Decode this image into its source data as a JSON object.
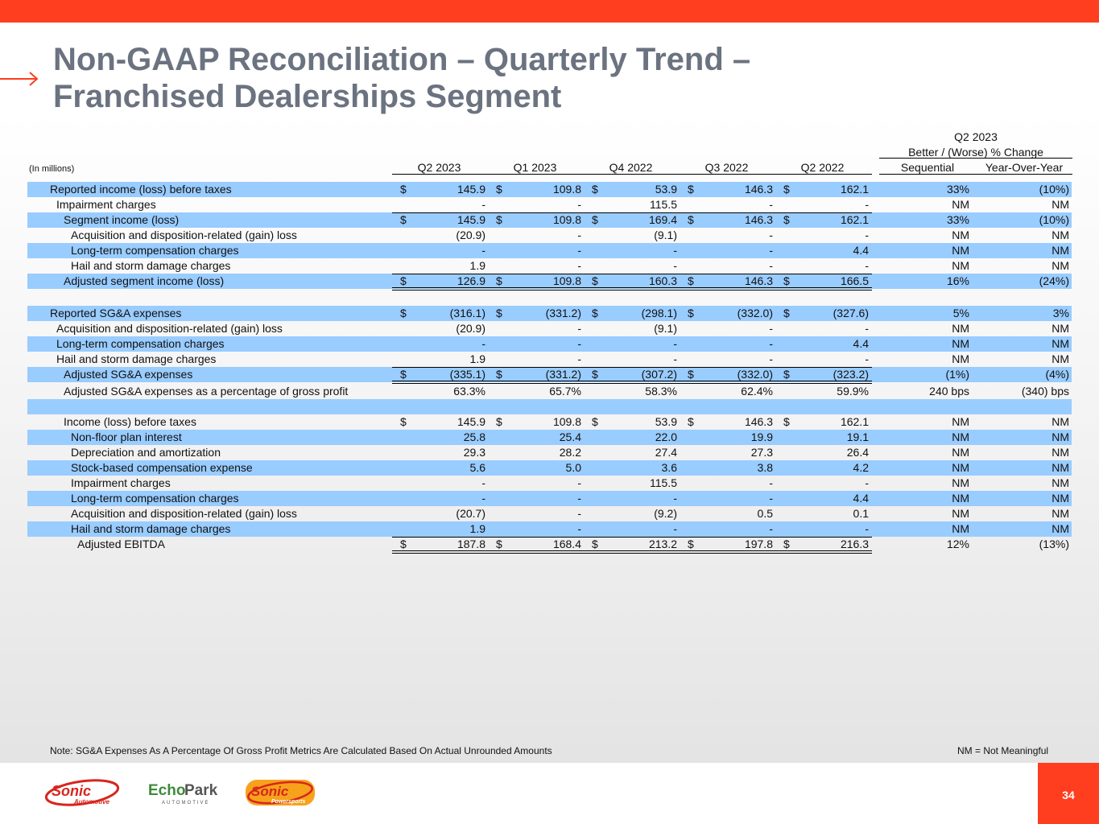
{
  "slide": {
    "title_line1": "Non-GAAP Reconciliation – Quarterly Trend –",
    "title_line2": "Franchised Dealerships Segment",
    "units": "(In millions)",
    "change_header": {
      "line1": "Q2 2023",
      "line2": "Better / (Worse) % Change"
    },
    "columns": [
      "Q2 2023",
      "Q1 2023",
      "Q4 2022",
      "Q3 2022",
      "Q2 2022"
    ],
    "change_columns": [
      "Sequential",
      "Year-Over-Year"
    ],
    "note": "Note: SG&A Expenses As A Percentage Of Gross Profit Metrics Are Calculated Based On Actual Unrounded Amounts",
    "legend_nm": "NM = Not Meaningful",
    "page_number": "34"
  },
  "brand_colors": {
    "accent": "#ff3d1f",
    "row_shade": "#99ccff",
    "title_gray": "#6b7280"
  },
  "logos": {
    "sonic_automotive": {
      "word": "Sonic",
      "sub": "Automotive"
    },
    "echopark": {
      "word1": "Echo",
      "word2": "Park",
      "sub": "AUTOMOTIVE"
    },
    "sonic_powersports": {
      "word": "Sonic",
      "sub": "Powersports"
    }
  },
  "rows": [
    {
      "label": "Reported income (loss) before taxes",
      "indent": 0,
      "dollar": true,
      "values": [
        "145.9",
        "109.8",
        "53.9",
        "146.3",
        "162.1"
      ],
      "seq": "33%",
      "yoy": "(10%)"
    },
    {
      "label": "Impairment charges",
      "indent": 1,
      "dollar": false,
      "values": [
        "-",
        "-",
        "115.5",
        "-",
        "-"
      ],
      "seq": "NM",
      "yoy": "NM"
    },
    {
      "label": "Segment income (loss)",
      "indent": 2,
      "dollar": true,
      "values": [
        "145.9",
        "109.8",
        "169.4",
        "146.3",
        "162.1"
      ],
      "seq": "33%",
      "yoy": "(10%)"
    },
    {
      "label": "Acquisition and disposition-related (gain) loss",
      "indent": 3,
      "dollar": false,
      "values": [
        "(20.9)",
        "-",
        "(9.1)",
        "-",
        "-"
      ],
      "seq": "NM",
      "yoy": "NM"
    },
    {
      "label": "Long-term compensation charges",
      "indent": 3,
      "dollar": false,
      "values": [
        "-",
        "-",
        "-",
        "-",
        "4.4"
      ],
      "seq": "NM",
      "yoy": "NM"
    },
    {
      "label": "Hail and storm damage charges",
      "indent": 3,
      "dollar": false,
      "values": [
        "1.9",
        "-",
        "-",
        "-",
        "-"
      ],
      "seq": "NM",
      "yoy": "NM"
    },
    {
      "label": "Adjusted segment income (loss)",
      "indent": 2,
      "dollar": true,
      "values": [
        "126.9",
        "109.8",
        "160.3",
        "146.3",
        "166.5"
      ],
      "seq": "16%",
      "yoy": "(24%)"
    },
    {
      "label": "",
      "indent": 0,
      "dollar": false,
      "values": [
        "",
        "",
        "",
        "",
        ""
      ],
      "seq": "",
      "yoy": ""
    },
    {
      "label": "Reported SG&A expenses",
      "indent": 0,
      "dollar": true,
      "values": [
        "(316.1)",
        "(331.2)",
        "(298.1)",
        "(332.0)",
        "(327.6)"
      ],
      "seq": "5%",
      "yoy": "3%"
    },
    {
      "label": "Acquisition and disposition-related (gain) loss",
      "indent": 1,
      "dollar": false,
      "values": [
        "(20.9)",
        "-",
        "(9.1)",
        "-",
        "-"
      ],
      "seq": "NM",
      "yoy": "NM"
    },
    {
      "label": "Long-term compensation charges",
      "indent": 1,
      "dollar": false,
      "values": [
        "-",
        "-",
        "-",
        "-",
        "4.4"
      ],
      "seq": "NM",
      "yoy": "NM"
    },
    {
      "label": "Hail and storm damage charges",
      "indent": 1,
      "dollar": false,
      "values": [
        "1.9",
        "-",
        "-",
        "-",
        "-"
      ],
      "seq": "NM",
      "yoy": "NM"
    },
    {
      "label": "Adjusted SG&A expenses",
      "indent": 2,
      "dollar": true,
      "values": [
        "(335.1)",
        "(331.2)",
        "(307.2)",
        "(332.0)",
        "(323.2)"
      ],
      "seq": "(1%)",
      "yoy": "(4%)"
    },
    {
      "label": "Adjusted SG&A expenses as a percentage of gross profit",
      "indent": 2,
      "dollar": false,
      "values": [
        "63.3%",
        "65.7%",
        "58.3%",
        "62.4%",
        "59.9%"
      ],
      "seq": "240 bps",
      "yoy": "(340) bps"
    },
    {
      "label": "",
      "indent": 0,
      "dollar": false,
      "values": [
        "",
        "",
        "",
        "",
        ""
      ],
      "seq": "",
      "yoy": ""
    },
    {
      "label": "Income (loss) before taxes",
      "indent": 2,
      "dollar": true,
      "values": [
        "145.9",
        "109.8",
        "53.9",
        "146.3",
        "162.1"
      ],
      "seq": "NM",
      "yoy": "NM"
    },
    {
      "label": "Non-floor plan interest",
      "indent": 3,
      "dollar": false,
      "values": [
        "25.8",
        "25.4",
        "22.0",
        "19.9",
        "19.1"
      ],
      "seq": "NM",
      "yoy": "NM"
    },
    {
      "label": "Depreciation and amortization",
      "indent": 3,
      "dollar": false,
      "values": [
        "29.3",
        "28.2",
        "27.4",
        "27.3",
        "26.4"
      ],
      "seq": "NM",
      "yoy": "NM"
    },
    {
      "label": "Stock-based compensation expense",
      "indent": 3,
      "dollar": false,
      "values": [
        "5.6",
        "5.0",
        "3.6",
        "3.8",
        "4.2"
      ],
      "seq": "NM",
      "yoy": "NM"
    },
    {
      "label": "Impairment charges",
      "indent": 3,
      "dollar": false,
      "values": [
        "-",
        "-",
        "115.5",
        "-",
        "-"
      ],
      "seq": "NM",
      "yoy": "NM"
    },
    {
      "label": "Long-term compensation charges",
      "indent": 3,
      "dollar": false,
      "values": [
        "-",
        "-",
        "-",
        "-",
        "4.4"
      ],
      "seq": "NM",
      "yoy": "NM"
    },
    {
      "label": "Acquisition and disposition-related (gain) loss",
      "indent": 3,
      "dollar": false,
      "values": [
        "(20.7)",
        "-",
        "(9.2)",
        "0.5",
        "0.1"
      ],
      "seq": "NM",
      "yoy": "NM"
    },
    {
      "label": "Hail and storm damage charges",
      "indent": 3,
      "dollar": false,
      "values": [
        "1.9",
        "-",
        "-",
        "-",
        "-"
      ],
      "seq": "NM",
      "yoy": "NM"
    },
    {
      "label": "Adjusted EBITDA",
      "indent": 4,
      "dollar": true,
      "values": [
        "187.8",
        "168.4",
        "213.2",
        "197.8",
        "216.3"
      ],
      "seq": "12%",
      "yoy": "(13%)"
    }
  ]
}
